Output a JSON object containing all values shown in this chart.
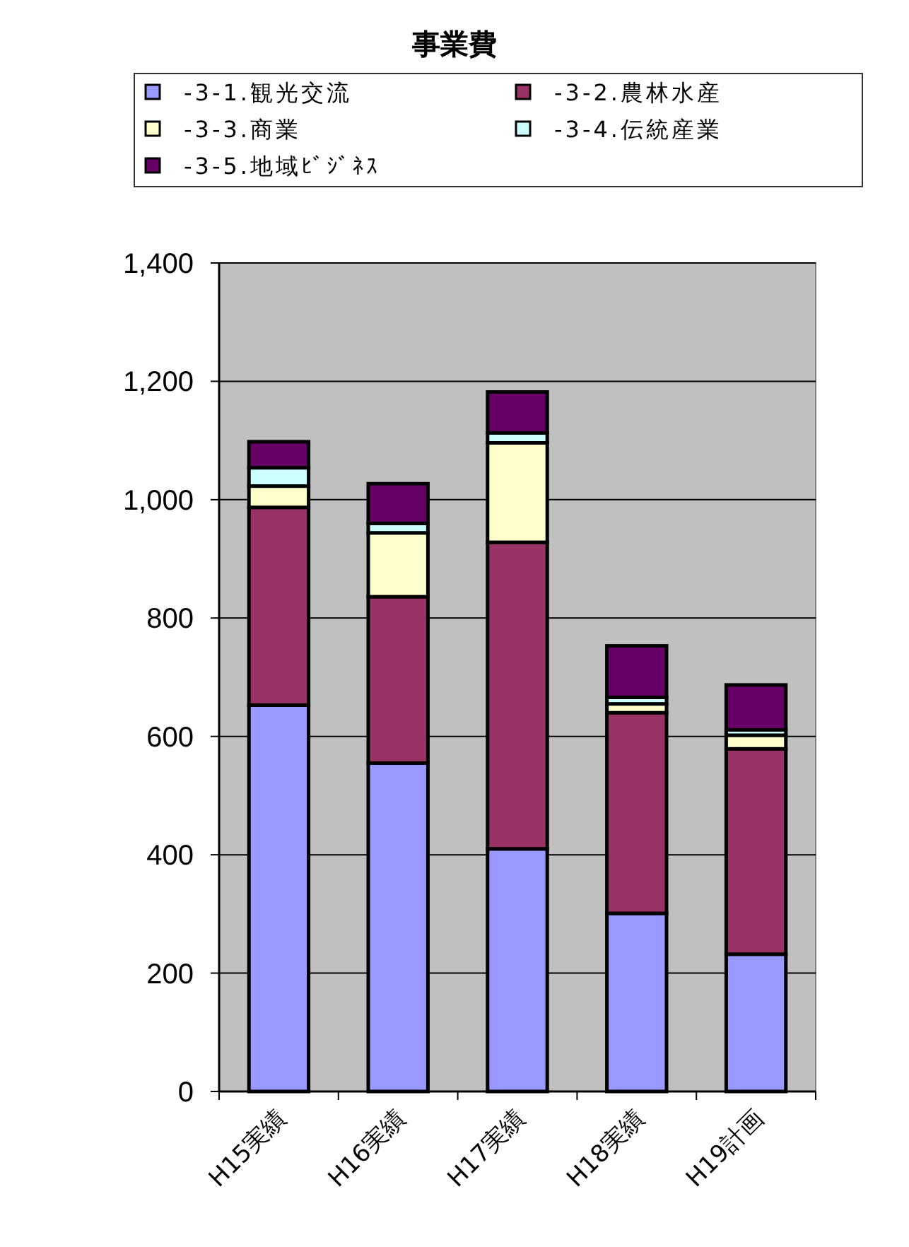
{
  "chart_data": {
    "type": "bar",
    "title": "事業費",
    "stacked": true,
    "grid": "y",
    "legend": "top",
    "categories": [
      "H15実績",
      "H16実績",
      "H17実績",
      "H18実績",
      "H19計画"
    ],
    "ylim": [
      0,
      1400
    ],
    "yticks": [
      {
        "value": 0,
        "label": "0"
      },
      {
        "value": 200,
        "label": "200"
      },
      {
        "value": 400,
        "label": "400"
      },
      {
        "value": 600,
        "label": "600"
      },
      {
        "value": 800,
        "label": "800"
      },
      {
        "value": 1000,
        "label": "1,000"
      },
      {
        "value": 1200,
        "label": "1,200"
      },
      {
        "value": 1400,
        "label": "1,400"
      }
    ],
    "series": [
      {
        "name": "-3-1.観光交流",
        "color": "#9999ff",
        "values": [
          653,
          555,
          410,
          301,
          232
        ]
      },
      {
        "name": "-3-2.農林水産",
        "color": "#993366",
        "values": [
          334,
          281,
          518,
          339,
          347
        ]
      },
      {
        "name": "-3-3.商業",
        "color": "#ffffcc",
        "values": [
          36,
          108,
          168,
          15,
          23
        ]
      },
      {
        "name": "-3-4.伝統産業",
        "color": "#ccffff",
        "values": [
          31,
          16,
          17,
          11,
          9
        ]
      },
      {
        "name": "-3-5.地域ﾋﾞｼﾞﾈｽ",
        "color": "#660066",
        "values": [
          44,
          67,
          69,
          87,
          76
        ]
      }
    ]
  }
}
